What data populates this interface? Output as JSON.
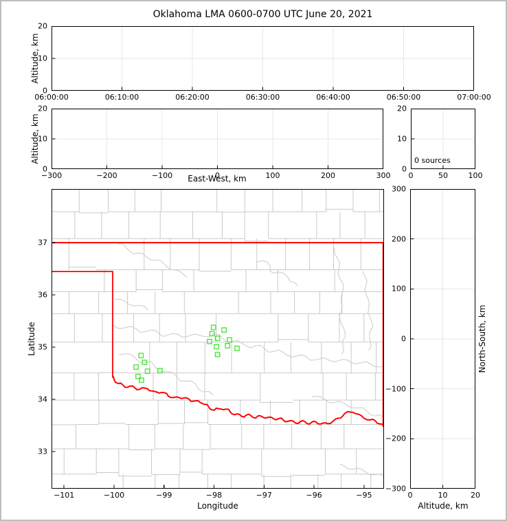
{
  "title": "Oklahoma LMA 0600-0700 UTC June 20, 2021",
  "colors": {
    "state_border_red": "#ff0000",
    "station_green": "#4de53c",
    "county_gray": "#c9c9c9",
    "gridline_gray": "#e7e7e7",
    "spine_black": "#000000"
  },
  "chart_data": [
    {
      "id": "time_height_panel",
      "type": "scatter",
      "title": "",
      "xlabel": "",
      "ylabel": "Altitude, km",
      "xlim": [
        0,
        60
      ],
      "ylim": [
        0,
        20
      ],
      "xticks": {
        "values": [
          0,
          10,
          20,
          30,
          40,
          50,
          60
        ],
        "labels": [
          "06:00:00",
          "06:10:00",
          "06:20:00",
          "06:30:00",
          "06:40:00",
          "06:50:00",
          "07:00:00"
        ]
      },
      "yticks": {
        "values": [
          0,
          10,
          20
        ],
        "labels": [
          "0",
          "10",
          "20"
        ]
      },
      "grid_x": [
        10,
        20,
        30,
        40,
        50
      ],
      "grid_y": [
        10
      ],
      "points": []
    },
    {
      "id": "ew_height_panel",
      "type": "scatter",
      "xlabel": "East-West, km",
      "ylabel": "Altitude, km",
      "xlim": [
        -300,
        300
      ],
      "ylim": [
        0,
        20
      ],
      "xticks": {
        "values": [
          -300,
          -200,
          -100,
          0,
          100,
          200,
          300
        ],
        "labels": [
          "−300",
          "−200",
          "−100",
          "0",
          "100",
          "200",
          "300"
        ]
      },
      "yticks": {
        "values": [
          0,
          10,
          20
        ],
        "labels": [
          "0",
          "10",
          "20"
        ]
      },
      "grid_x": [
        -200,
        -100,
        0,
        100,
        200
      ],
      "grid_y": [
        10
      ],
      "points": []
    },
    {
      "id": "altitude_histogram_panel",
      "type": "line",
      "annotation": "0 sources",
      "xlim": [
        0,
        100
      ],
      "ylim": [
        0,
        20
      ],
      "xticks": {
        "values": [
          0,
          50,
          100
        ],
        "labels": [
          "0",
          "50",
          "100"
        ]
      },
      "yticks": {
        "values": [
          0,
          10,
          20
        ],
        "labels": [
          "0",
          "10",
          "20"
        ]
      },
      "grid_x": [
        50
      ],
      "grid_y": [
        10
      ],
      "points": []
    },
    {
      "id": "plan_view_panel",
      "type": "scatter",
      "xlabel": "Longitude",
      "ylabel": "Latitude",
      "xlim": [
        -101.25,
        -94.6
      ],
      "ylim": [
        32.29,
        38.03
      ],
      "xticks": {
        "values": [
          -101,
          -100,
          -99,
          -98,
          -97,
          -96,
          -95
        ],
        "labels": [
          "−101",
          "−100",
          "−99",
          "−98",
          "−97",
          "−96",
          "−95"
        ]
      },
      "yticks": {
        "values": [
          33,
          34,
          35,
          36,
          37
        ],
        "labels": [
          "33",
          "34",
          "35",
          "36",
          "37"
        ]
      },
      "grid_x": [],
      "grid_y": [],
      "marker": {
        "shape": "open-square",
        "color": "#4de53c",
        "meaning": "LMA station location"
      },
      "stations": [
        {
          "lon": -99.46,
          "lat": 34.84
        },
        {
          "lon": -99.39,
          "lat": 34.71
        },
        {
          "lon": -99.56,
          "lat": 34.62
        },
        {
          "lon": -99.33,
          "lat": 34.54
        },
        {
          "lon": -99.08,
          "lat": 34.55
        },
        {
          "lon": -99.52,
          "lat": 34.44
        },
        {
          "lon": -99.45,
          "lat": 34.37
        },
        {
          "lon": -98.01,
          "lat": 35.38
        },
        {
          "lon": -97.8,
          "lat": 35.33
        },
        {
          "lon": -98.04,
          "lat": 35.26
        },
        {
          "lon": -97.93,
          "lat": 35.17
        },
        {
          "lon": -98.09,
          "lat": 35.11
        },
        {
          "lon": -97.69,
          "lat": 35.14
        },
        {
          "lon": -97.95,
          "lat": 35.01
        },
        {
          "lon": -97.73,
          "lat": 35.03
        },
        {
          "lon": -97.54,
          "lat": 34.98
        },
        {
          "lon": -97.93,
          "lat": 34.86
        }
      ]
    },
    {
      "id": "ns_height_panel",
      "type": "scatter",
      "xlabel": "Altitude, km",
      "ylabel": "North-South, km",
      "xlim": [
        0,
        20
      ],
      "ylim": [
        -300,
        300
      ],
      "xticks": {
        "values": [
          0,
          10,
          20
        ],
        "labels": [
          "0",
          "10",
          "20"
        ]
      },
      "yticks": {
        "values": [
          -300,
          -200,
          -100,
          0,
          100,
          200,
          300
        ],
        "labels": [
          "−300",
          "−200",
          "−100",
          "0",
          "100",
          "200",
          "300"
        ]
      },
      "grid_x": [
        10
      ],
      "grid_y": [
        -200,
        -100,
        0,
        100,
        200
      ],
      "points": []
    }
  ]
}
